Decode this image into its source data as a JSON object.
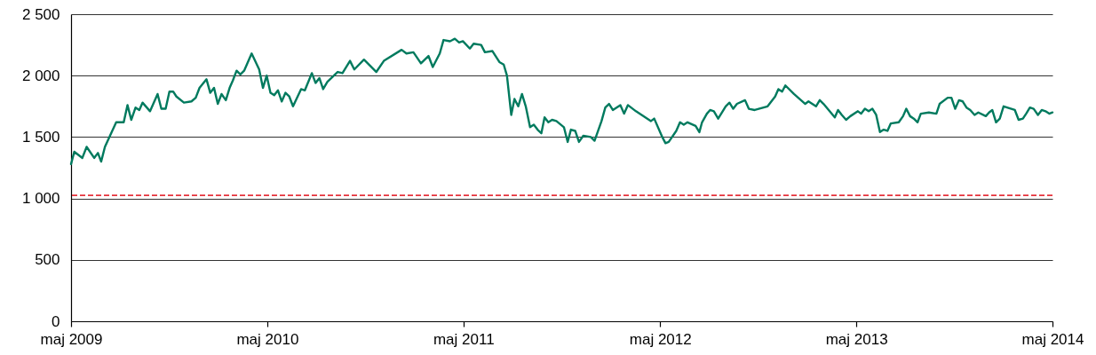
{
  "chart_data": {
    "type": "line",
    "x": [
      "2009-05-01",
      "2009-05-07",
      "2009-05-22",
      "2009-05-30",
      "2009-06-13",
      "2009-06-20",
      "2009-06-26",
      "2009-07-03",
      "2009-07-24",
      "2009-08-07",
      "2009-08-14",
      "2009-08-21",
      "2009-08-29",
      "2009-09-05",
      "2009-09-11",
      "2009-09-25",
      "2009-10-09",
      "2009-10-16",
      "2009-10-24",
      "2009-10-31",
      "2009-11-07",
      "2009-11-13",
      "2009-11-27",
      "2009-12-11",
      "2009-12-19",
      "2009-12-26",
      "2010-01-08",
      "2010-01-15",
      "2010-01-22",
      "2010-01-29",
      "2010-02-05",
      "2010-02-13",
      "2010-02-20",
      "2010-02-26",
      "2010-03-05",
      "2010-03-12",
      "2010-03-19",
      "2010-04-02",
      "2010-04-16",
      "2010-04-23",
      "2010-04-30",
      "2010-05-07",
      "2010-05-14",
      "2010-05-21",
      "2010-05-28",
      "2010-06-04",
      "2010-06-11",
      "2010-06-18",
      "2010-07-03",
      "2010-07-10",
      "2010-07-23",
      "2010-07-30",
      "2010-08-06",
      "2010-08-13",
      "2010-08-21",
      "2010-09-09",
      "2010-09-18",
      "2010-10-02",
      "2010-10-10",
      "2010-10-28",
      "2010-11-20",
      "2010-12-04",
      "2011-01-06",
      "2011-01-15",
      "2011-01-28",
      "2011-02-11",
      "2011-02-25",
      "2011-03-05",
      "2011-03-18",
      "2011-03-25",
      "2011-04-06",
      "2011-04-15",
      "2011-04-23",
      "2011-04-30",
      "2011-05-13",
      "2011-05-20",
      "2011-06-03",
      "2011-06-10",
      "2011-06-24",
      "2011-07-07",
      "2011-07-15",
      "2011-07-21",
      "2011-07-29",
      "2011-08-04",
      "2011-08-11",
      "2011-08-18",
      "2011-08-25",
      "2011-09-02",
      "2011-09-09",
      "2011-09-16",
      "2011-09-23",
      "2011-09-29",
      "2011-10-06",
      "2011-10-13",
      "2011-10-21",
      "2011-11-04",
      "2011-11-11",
      "2011-11-17",
      "2011-11-25",
      "2011-12-02",
      "2011-12-10",
      "2011-12-24",
      "2011-12-31",
      "2012-01-13",
      "2012-01-20",
      "2012-01-27",
      "2012-02-03",
      "2012-02-17",
      "2012-02-24",
      "2012-03-02",
      "2012-03-17",
      "2012-04-14",
      "2012-04-20",
      "2012-05-05",
      "2012-05-11",
      "2012-05-17",
      "2012-05-31",
      "2012-06-07",
      "2012-06-14",
      "2012-06-21",
      "2012-07-06",
      "2012-07-13",
      "2012-07-18",
      "2012-07-27",
      "2012-08-02",
      "2012-08-09",
      "2012-08-17",
      "2012-08-31",
      "2012-09-07",
      "2012-09-14",
      "2012-09-21",
      "2012-10-06",
      "2012-10-13",
      "2012-10-24",
      "2012-11-17",
      "2012-12-01",
      "2012-12-07",
      "2012-12-14",
      "2012-12-20",
      "2013-01-05",
      "2013-01-26",
      "2013-02-01",
      "2013-02-15",
      "2013-02-22",
      "2013-03-01",
      "2013-03-22",
      "2013-03-28",
      "2013-04-04",
      "2013-04-12",
      "2013-04-20",
      "2013-05-04",
      "2013-05-10",
      "2013-05-17",
      "2013-05-24",
      "2013-05-31",
      "2013-06-07",
      "2013-06-14",
      "2013-06-21",
      "2013-06-28",
      "2013-07-04",
      "2013-07-19",
      "2013-07-27",
      "2013-08-02",
      "2013-08-09",
      "2013-08-16",
      "2013-08-23",
      "2013-08-29",
      "2013-09-13",
      "2013-09-27",
      "2013-10-03",
      "2013-10-18",
      "2013-10-25",
      "2013-11-01",
      "2013-11-08",
      "2013-11-15",
      "2013-11-22",
      "2013-11-29",
      "2013-12-07",
      "2013-12-14",
      "2013-12-28",
      "2014-01-03",
      "2014-01-09",
      "2014-01-16",
      "2014-01-23",
      "2014-01-30",
      "2014-02-20",
      "2014-02-27",
      "2014-03-07",
      "2014-03-13",
      "2014-03-20",
      "2014-03-27",
      "2014-04-04",
      "2014-04-11",
      "2014-04-18",
      "2014-04-25",
      "2014-05-01"
    ],
    "series": [
      {
        "color": "#007a5e",
        "values": [
          1280,
          1380,
          1330,
          1420,
          1330,
          1370,
          1300,
          1420,
          1620,
          1620,
          1760,
          1640,
          1740,
          1720,
          1780,
          1710,
          1850,
          1730,
          1730,
          1870,
          1870,
          1830,
          1780,
          1790,
          1820,
          1900,
          1970,
          1860,
          1900,
          1770,
          1850,
          1800,
          1900,
          1960,
          2040,
          2010,
          2040,
          2180,
          2050,
          1900,
          2000,
          1860,
          1840,
          1880,
          1790,
          1860,
          1830,
          1750,
          1890,
          1880,
          2020,
          1940,
          1980,
          1890,
          1950,
          2030,
          2020,
          2120,
          2050,
          2130,
          2030,
          2120,
          2210,
          2180,
          2190,
          2100,
          2160,
          2070,
          2180,
          2290,
          2280,
          2300,
          2270,
          2280,
          2220,
          2260,
          2250,
          2190,
          2200,
          2110,
          2090,
          2000,
          1680,
          1810,
          1750,
          1850,
          1750,
          1580,
          1600,
          1560,
          1530,
          1660,
          1620,
          1640,
          1630,
          1580,
          1460,
          1560,
          1550,
          1460,
          1510,
          1500,
          1470,
          1630,
          1740,
          1770,
          1720,
          1760,
          1690,
          1760,
          1710,
          1630,
          1650,
          1500,
          1450,
          1460,
          1550,
          1620,
          1600,
          1620,
          1590,
          1540,
          1620,
          1690,
          1720,
          1710,
          1650,
          1750,
          1780,
          1730,
          1770,
          1800,
          1730,
          1720,
          1750,
          1830,
          1890,
          1870,
          1920,
          1850,
          1770,
          1790,
          1750,
          1800,
          1770,
          1660,
          1720,
          1680,
          1640,
          1670,
          1710,
          1690,
          1730,
          1710,
          1730,
          1680,
          1540,
          1560,
          1550,
          1610,
          1620,
          1670,
          1730,
          1670,
          1650,
          1620,
          1690,
          1700,
          1690,
          1770,
          1820,
          1820,
          1730,
          1800,
          1790,
          1740,
          1720,
          1680,
          1700,
          1670,
          1700,
          1720,
          1620,
          1650,
          1750,
          1720,
          1640,
          1650,
          1690,
          1740,
          1730,
          1680,
          1720,
          1710,
          1690,
          1700
        ]
      }
    ],
    "xlim": [
      "2009-05-01",
      "2014-05-01"
    ],
    "xticks": [
      {
        "value": "2009-05-01",
        "label": "maj 2009"
      },
      {
        "value": "2010-05-01",
        "label": "maj 2010"
      },
      {
        "value": "2011-05-01",
        "label": "maj 2011"
      },
      {
        "value": "2012-05-01",
        "label": "maj 2012"
      },
      {
        "value": "2013-05-01",
        "label": "maj 2013"
      },
      {
        "value": "2014-05-01",
        "label": "maj 2014"
      }
    ],
    "ylim": [
      0,
      2500
    ],
    "yticks": [
      0,
      500,
      {
        "value": 1000,
        "label": "1 000"
      },
      {
        "value": 1500,
        "label": "1 500"
      },
      {
        "value": 2000,
        "label": "2 000"
      },
      {
        "value": 2500,
        "label": "2 500"
      }
    ],
    "grid": "y",
    "ref_lines": [
      {
        "axis": "y",
        "value": 1025,
        "color": "#e5323b",
        "line_style": "dashed"
      }
    ]
  }
}
